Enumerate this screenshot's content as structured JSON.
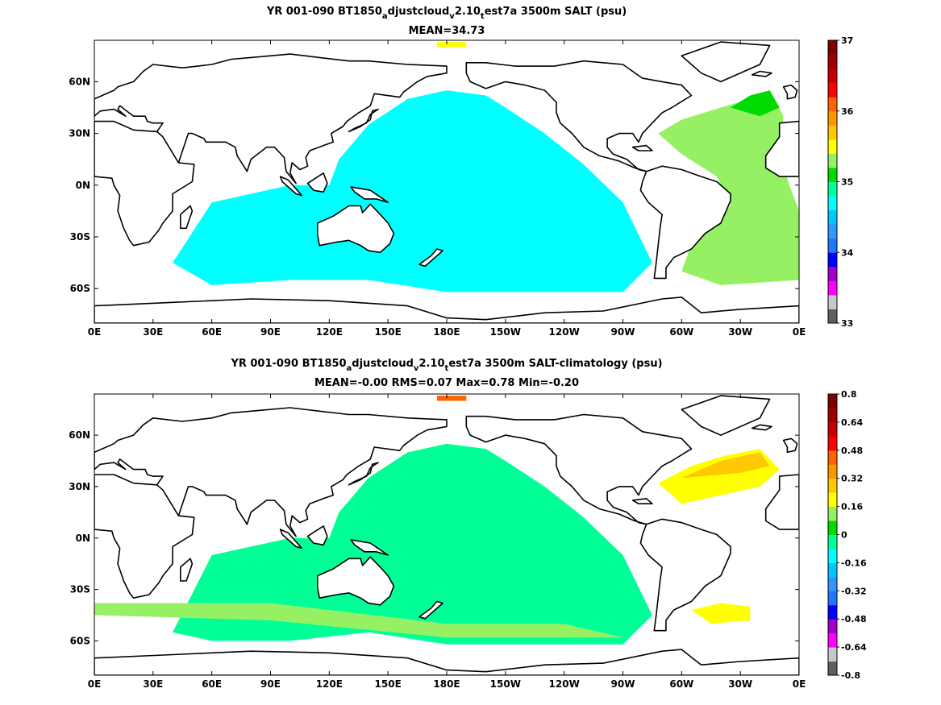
{
  "chart_data": [
    {
      "type": "heatmap",
      "title_parts": [
        "YR 001-090 BT1850",
        "a",
        "djustcloud",
        "v",
        "2.10",
        "t",
        "est7a 3500m SALT (psu)"
      ],
      "subtitle": "MEAN=34.73",
      "x_ticks": [
        "0E",
        "30E",
        "60E",
        "90E",
        "120E",
        "150E",
        "180E",
        "150W",
        "120W",
        "90W",
        "60W",
        "30W",
        "0E"
      ],
      "y_ticks": [
        "60N",
        "30N",
        "0N",
        "30S",
        "60S"
      ],
      "colorbar": {
        "min": 33,
        "max": 37,
        "ticks": [
          "33",
          "34",
          "35",
          "36",
          "37"
        ],
        "colors": [
          "#606060",
          "#c8c8c8",
          "#ff00ff",
          "#a000c8",
          "#0000ff",
          "#1e78ff",
          "#3296ff",
          "#00c8ff",
          "#00ffff",
          "#00ff96",
          "#00dc00",
          "#96f064",
          "#ffff00",
          "#ffc800",
          "#ff9600",
          "#ff6400",
          "#ff0000",
          "#c80000",
          "#a00000",
          "#800000"
        ]
      },
      "dominant_fills": {
        "pacific_indian": "#00ffff",
        "atlantic": "#96f064",
        "north_atlantic_core": "#00dc00",
        "arctic_patch": "#ffff00"
      }
    },
    {
      "type": "heatmap",
      "title_parts": [
        "YR 001-090 BT1850",
        "a",
        "djustcloud",
        "v",
        "2.10",
        "t",
        "est7a 3500m SALT-climatology (psu)"
      ],
      "subtitle": "MEAN=-0.00   RMS=0.07   Max=0.78   Min=-0.20",
      "x_ticks": [
        "0E",
        "30E",
        "60E",
        "90E",
        "120E",
        "150E",
        "180E",
        "150W",
        "120W",
        "90W",
        "60W",
        "30W",
        "0E"
      ],
      "y_ticks": [
        "60N",
        "30N",
        "0N",
        "30S",
        "60S"
      ],
      "colorbar": {
        "min": -0.8,
        "max": 0.8,
        "ticks": [
          "-0.8",
          "-0.64",
          "-0.48",
          "-0.32",
          "-0.16",
          "0",
          "0.16",
          "0.32",
          "0.48",
          "0.64",
          "0.8"
        ],
        "colors": [
          "#606060",
          "#c8c8c8",
          "#ff00ff",
          "#a000c8",
          "#0000ff",
          "#1e78ff",
          "#3296ff",
          "#00c8ff",
          "#00ffff",
          "#00ff96",
          "#00dc00",
          "#96f064",
          "#ffff00",
          "#ffc800",
          "#ff9600",
          "#ff6400",
          "#ff0000",
          "#c80000",
          "#a00000",
          "#800000"
        ]
      },
      "dominant_fills": {
        "pacific_indian": "#00ff96",
        "southern_bands": "#96f064",
        "north_atlantic": "#ffff00",
        "north_atlantic_core": "#ffc800",
        "arctic_patch": "#ff6400"
      }
    }
  ]
}
